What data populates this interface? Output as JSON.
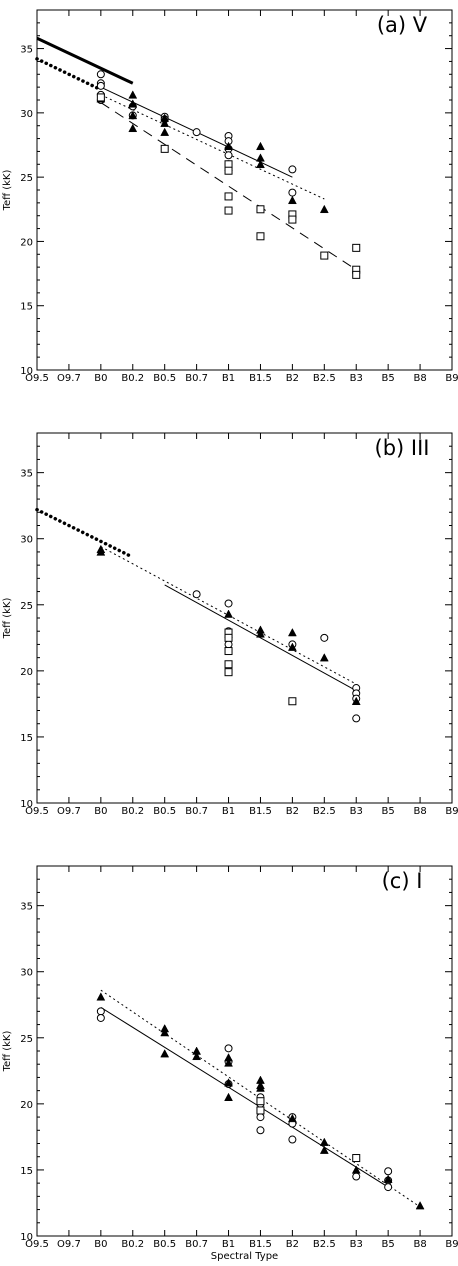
{
  "x_tick_labels": [
    "O9.5",
    "O9.7",
    "B0",
    "B0.2",
    "B0.5",
    "B0.7",
    "B1",
    "B1.5",
    "B2",
    "B2.5",
    "B3",
    "B5",
    "B8",
    "B9"
  ],
  "y_ticks": [
    10,
    15,
    20,
    25,
    30,
    35
  ],
  "ylabel": "Teff (kK)",
  "xlabel": "Spectral Type",
  "chart_data": [
    {
      "type": "scatter",
      "title": "(a) V",
      "ylim": [
        10,
        38
      ],
      "xlim": [
        "O9.5",
        "B9"
      ],
      "series": [
        {
          "marker": "circle",
          "points": [
            {
              "x": "B0",
              "y": 33.0
            },
            {
              "x": "B0",
              "y": 32.3
            },
            {
              "x": "B0",
              "y": 32.1
            },
            {
              "x": "B0",
              "y": 31.4
            },
            {
              "x": "B0",
              "y": 31.0
            },
            {
              "x": "B0.2",
              "y": 30.5
            },
            {
              "x": "B0.2",
              "y": 29.8
            },
            {
              "x": "B0.5",
              "y": 29.7
            },
            {
              "x": "B0.5",
              "y": 29.5
            },
            {
              "x": "B0.7",
              "y": 28.5
            },
            {
              "x": "B1",
              "y": 28.2
            },
            {
              "x": "B1",
              "y": 27.8
            },
            {
              "x": "B1",
              "y": 27.2
            },
            {
              "x": "B1",
              "y": 26.7
            },
            {
              "x": "B1",
              "y": 26.0
            },
            {
              "x": "B2",
              "y": 25.6
            },
            {
              "x": "B2",
              "y": 23.8
            }
          ]
        },
        {
          "marker": "triangle",
          "points": [
            {
              "x": "B0",
              "y": 31.1
            },
            {
              "x": "B0.2",
              "y": 31.4
            },
            {
              "x": "B0.2",
              "y": 30.7
            },
            {
              "x": "B0.2",
              "y": 29.8
            },
            {
              "x": "B0.2",
              "y": 28.8
            },
            {
              "x": "B0.5",
              "y": 29.6
            },
            {
              "x": "B0.5",
              "y": 29.2
            },
            {
              "x": "B0.5",
              "y": 28.5
            },
            {
              "x": "B1",
              "y": 27.4
            },
            {
              "x": "B1",
              "y": 25.8
            },
            {
              "x": "B1.5",
              "y": 27.4
            },
            {
              "x": "B1.5",
              "y": 26.5
            },
            {
              "x": "B1.5",
              "y": 26.0
            },
            {
              "x": "B2",
              "y": 23.2
            },
            {
              "x": "B2.5",
              "y": 22.5
            }
          ]
        },
        {
          "marker": "square",
          "points": [
            {
              "x": "B0",
              "y": 31.2
            },
            {
              "x": "B0.5",
              "y": 27.2
            },
            {
              "x": "B1",
              "y": 26.0
            },
            {
              "x": "B1",
              "y": 25.5
            },
            {
              "x": "B1",
              "y": 23.5
            },
            {
              "x": "B1",
              "y": 22.4
            },
            {
              "x": "B1.5",
              "y": 22.5
            },
            {
              "x": "B1.5",
              "y": 20.4
            },
            {
              "x": "B2",
              "y": 22.1
            },
            {
              "x": "B2",
              "y": 21.7
            },
            {
              "x": "B2.5",
              "y": 18.9
            },
            {
              "x": "B3",
              "y": 19.5
            },
            {
              "x": "B3",
              "y": 17.8
            },
            {
              "x": "B3",
              "y": 17.4
            }
          ]
        }
      ],
      "lines": [
        {
          "style": "thick-solid",
          "points": [
            {
              "x": "O9.5",
              "y": 35.8
            },
            {
              "x": "B0.2",
              "y": 32.3
            }
          ]
        },
        {
          "style": "thick-dotted",
          "points": [
            {
              "x": "O9.5",
              "y": 34.2
            },
            {
              "x": "B0",
              "y": 31.8
            }
          ]
        },
        {
          "style": "solid",
          "points": [
            {
              "x": "B0",
              "y": 32.0
            },
            {
              "x": "B2",
              "y": 25.0
            }
          ]
        },
        {
          "style": "dotted",
          "points": [
            {
              "x": "B0",
              "y": 31.4
            },
            {
              "x": "B2.5",
              "y": 23.3
            }
          ]
        },
        {
          "style": "dashed",
          "points": [
            {
              "x": "B0",
              "y": 30.8
            },
            {
              "x": "B3",
              "y": 17.8
            }
          ]
        }
      ]
    },
    {
      "type": "scatter",
      "title": "(b) III",
      "ylim": [
        10,
        38
      ],
      "xlim": [
        "O9.5",
        "B9"
      ],
      "series": [
        {
          "marker": "circle",
          "points": [
            {
              "x": "B0.7",
              "y": 25.8
            },
            {
              "x": "B1",
              "y": 25.1
            },
            {
              "x": "B1",
              "y": 23.0
            },
            {
              "x": "B1",
              "y": 22.0
            },
            {
              "x": "B2",
              "y": 22.0
            },
            {
              "x": "B2.5",
              "y": 22.5
            },
            {
              "x": "B3",
              "y": 18.7
            },
            {
              "x": "B3",
              "y": 18.3
            },
            {
              "x": "B3",
              "y": 17.9
            },
            {
              "x": "B3",
              "y": 16.4
            }
          ]
        },
        {
          "marker": "triangle",
          "points": [
            {
              "x": "B0",
              "y": 29.2
            },
            {
              "x": "B0",
              "y": 29.0
            },
            {
              "x": "B1",
              "y": 24.3
            },
            {
              "x": "B1",
              "y": 22.8
            },
            {
              "x": "B1.5",
              "y": 23.1
            },
            {
              "x": "B1.5",
              "y": 22.8
            },
            {
              "x": "B2",
              "y": 22.9
            },
            {
              "x": "B2",
              "y": 21.8
            },
            {
              "x": "B2.5",
              "y": 21.0
            },
            {
              "x": "B3",
              "y": 17.7
            }
          ]
        },
        {
          "marker": "square",
          "points": [
            {
              "x": "B1",
              "y": 22.9
            },
            {
              "x": "B1",
              "y": 22.5
            },
            {
              "x": "B1",
              "y": 21.5
            },
            {
              "x": "B1",
              "y": 20.5
            },
            {
              "x": "B1",
              "y": 19.9
            },
            {
              "x": "B2",
              "y": 17.7
            }
          ]
        }
      ],
      "lines": [
        {
          "style": "thick-dotted",
          "points": [
            {
              "x": "O9.5",
              "y": 32.2
            },
            {
              "x": "B0.2",
              "y": 28.6
            }
          ]
        },
        {
          "style": "solid",
          "points": [
            {
              "x": "B0.5",
              "y": 26.5
            },
            {
              "x": "B3",
              "y": 18.5
            }
          ]
        },
        {
          "style": "dotted",
          "points": [
            {
              "x": "B0",
              "y": 29.4
            },
            {
              "x": "B3",
              "y": 19.0
            }
          ]
        }
      ]
    },
    {
      "type": "scatter",
      "title": "(c) I",
      "ylim": [
        10,
        38
      ],
      "xlim": [
        "O9.5",
        "B9"
      ],
      "series": [
        {
          "marker": "circle",
          "points": [
            {
              "x": "B0",
              "y": 27.0
            },
            {
              "x": "B0",
              "y": 26.5
            },
            {
              "x": "B1",
              "y": 24.2
            },
            {
              "x": "B1",
              "y": 23.2
            },
            {
              "x": "B1",
              "y": 21.5
            },
            {
              "x": "B1.5",
              "y": 20.5
            },
            {
              "x": "B1.5",
              "y": 20.0
            },
            {
              "x": "B1.5",
              "y": 19.5
            },
            {
              "x": "B1.5",
              "y": 19.0
            },
            {
              "x": "B1.5",
              "y": 18.0
            },
            {
              "x": "B2",
              "y": 19.0
            },
            {
              "x": "B2",
              "y": 18.5
            },
            {
              "x": "B2",
              "y": 17.3
            },
            {
              "x": "B3",
              "y": 14.5
            },
            {
              "x": "B5",
              "y": 14.9
            },
            {
              "x": "B5",
              "y": 14.2
            },
            {
              "x": "B5",
              "y": 13.7
            }
          ]
        },
        {
          "marker": "triangle",
          "points": [
            {
              "x": "B0",
              "y": 28.1
            },
            {
              "x": "B0.5",
              "y": 25.7
            },
            {
              "x": "B0.5",
              "y": 25.4
            },
            {
              "x": "B0.5",
              "y": 23.8
            },
            {
              "x": "B0.7",
              "y": 24.0
            },
            {
              "x": "B0.7",
              "y": 23.6
            },
            {
              "x": "B1",
              "y": 23.5
            },
            {
              "x": "B1",
              "y": 23.1
            },
            {
              "x": "B1",
              "y": 21.6
            },
            {
              "x": "B1",
              "y": 20.5
            },
            {
              "x": "B1.5",
              "y": 21.8
            },
            {
              "x": "B1.5",
              "y": 21.4
            },
            {
              "x": "B1.5",
              "y": 21.2
            },
            {
              "x": "B2",
              "y": 18.9
            },
            {
              "x": "B2.5",
              "y": 17.1
            },
            {
              "x": "B2.5",
              "y": 16.5
            },
            {
              "x": "B3",
              "y": 15.0
            },
            {
              "x": "B5",
              "y": 14.3
            },
            {
              "x": "B8",
              "y": 12.3
            }
          ]
        },
        {
          "marker": "square",
          "points": [
            {
              "x": "B1.5",
              "y": 20.2
            },
            {
              "x": "B1.5",
              "y": 19.5
            },
            {
              "x": "B3",
              "y": 15.9
            }
          ]
        }
      ],
      "lines": [
        {
          "style": "solid",
          "points": [
            {
              "x": "B0",
              "y": 27.3
            },
            {
              "x": "B5",
              "y": 13.7
            }
          ]
        },
        {
          "style": "dotted",
          "points": [
            {
              "x": "B0",
              "y": 28.6
            },
            {
              "x": "B8",
              "y": 12.2
            }
          ]
        }
      ]
    }
  ]
}
